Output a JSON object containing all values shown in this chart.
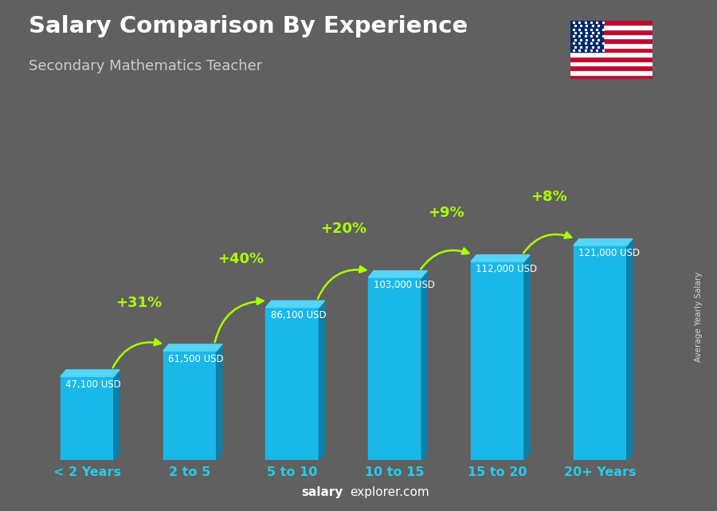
{
  "title": "Salary Comparison By Experience",
  "subtitle": "Secondary Mathematics Teacher",
  "categories": [
    "< 2 Years",
    "2 to 5",
    "5 to 10",
    "10 to 15",
    "15 to 20",
    "20+ Years"
  ],
  "values": [
    47100,
    61500,
    86100,
    103000,
    112000,
    121000
  ],
  "salary_labels": [
    "47,100 USD",
    "61,500 USD",
    "86,100 USD",
    "103,000 USD",
    "112,000 USD",
    "121,000 USD"
  ],
  "pct_changes": [
    "+31%",
    "+40%",
    "+20%",
    "+9%",
    "+8%"
  ],
  "bar_color_main": "#1ab8e8",
  "bar_color_side": "#0d7fa8",
  "bar_color_top": "#55d4f5",
  "bg_color": "#606060",
  "title_color": "#ffffff",
  "subtitle_color": "#cccccc",
  "label_color": "#ffffff",
  "pct_color": "#aaff00",
  "xlabel_color": "#22ccee",
  "ylabel_text": "Average Yearly Salary",
  "watermark_salary": "salary",
  "watermark_explorer": "explorer.com",
  "ylim_max": 150000
}
